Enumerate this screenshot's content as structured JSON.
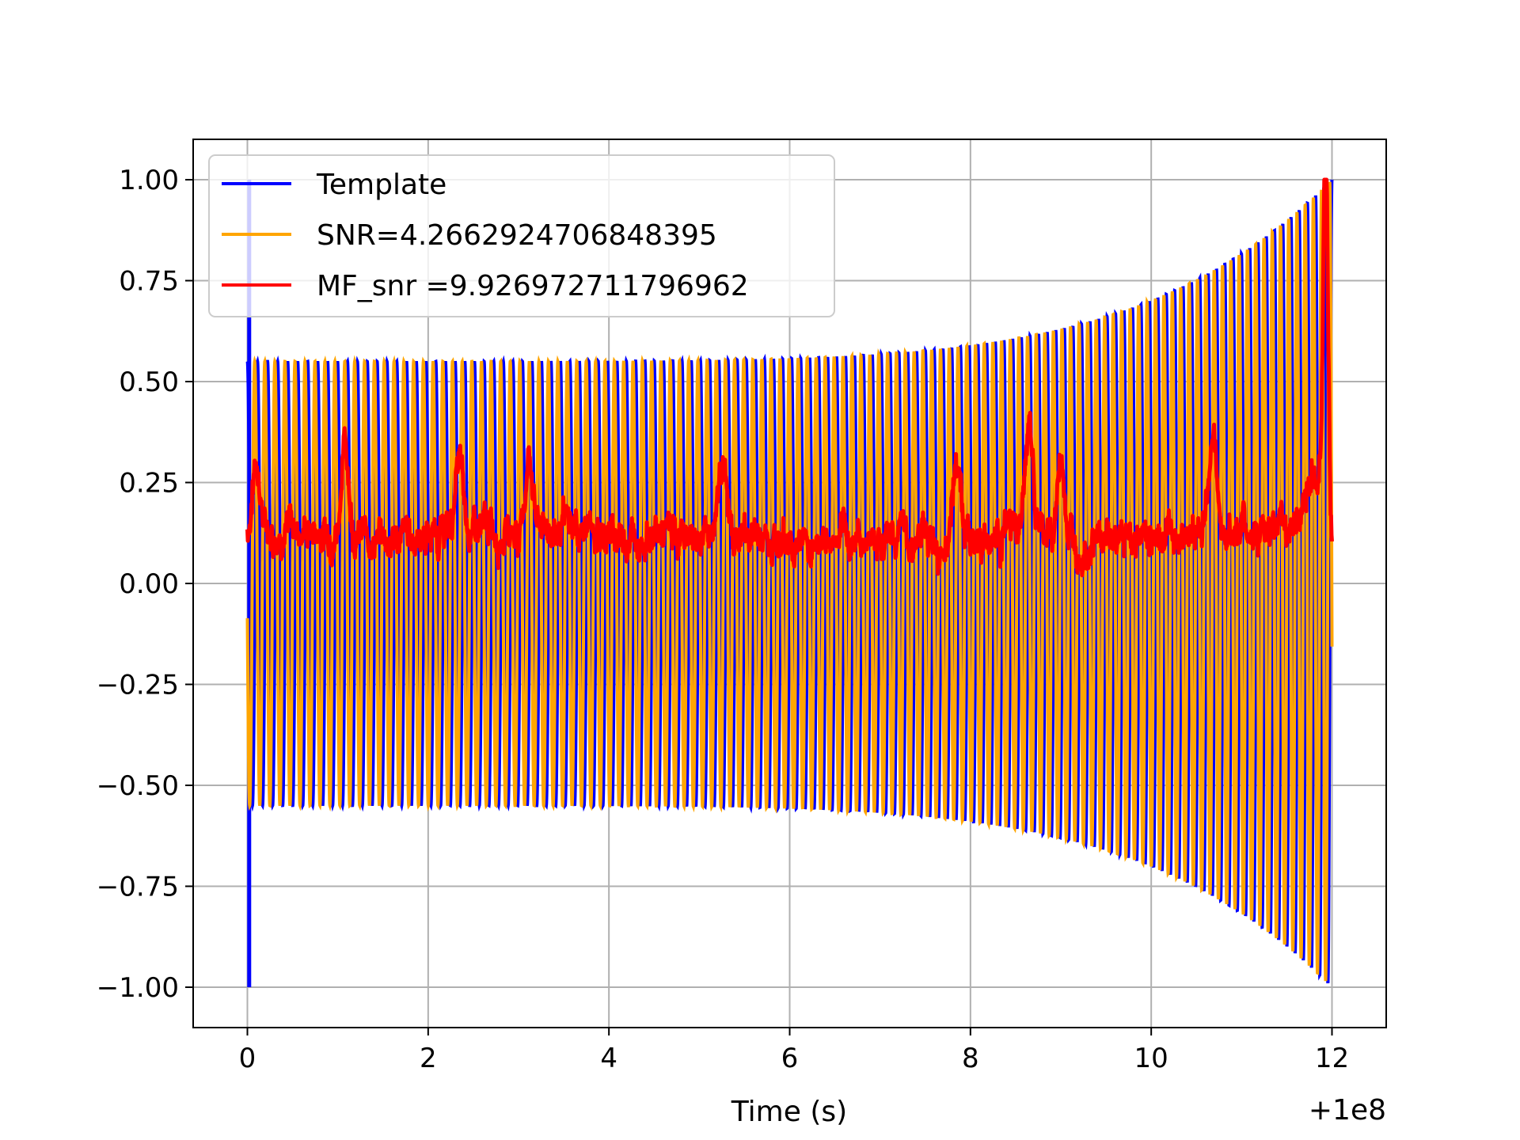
{
  "chart_data": {
    "type": "line",
    "title": "",
    "xlabel": "Time (s)",
    "ylabel": "",
    "x_offset_label": "+1e8",
    "xlim": [
      -0.6,
      12.6
    ],
    "ylim": [
      -1.1,
      1.1
    ],
    "x_ticks": [
      0,
      2,
      4,
      6,
      8,
      10,
      12
    ],
    "x_tick_labels": [
      "0",
      "2",
      "4",
      "6",
      "8",
      "10",
      "12"
    ],
    "y_ticks": [
      1.0,
      0.75,
      0.5,
      0.25,
      0.0,
      -0.25,
      -0.5,
      -0.75,
      -1.0
    ],
    "y_tick_labels": [
      "1.00",
      "0.75",
      "0.50",
      "0.25",
      "0.00",
      "−0.25",
      "−0.50",
      "−0.75",
      "−1.00"
    ],
    "grid": true,
    "legend_position": "top-left",
    "series": [
      {
        "name": "Template",
        "color": "#0000ff",
        "kind": "chirp",
        "t_start": 0.0,
        "t_end": 12.0,
        "amp_start": 0.55,
        "amp_end": 1.0,
        "cycles": 120
      },
      {
        "name": "SNR=4.2662924706848395",
        "color": "#ffa500",
        "kind": "chirp",
        "t_start": 0.0,
        "t_end": 12.0,
        "amp_start": 0.55,
        "amp_end": 1.0,
        "cycles": 120
      },
      {
        "name": "MF_snr =9.926972711796962",
        "color": "#ff0000",
        "kind": "noise",
        "x": [
          0.0,
          0.5,
          1.0,
          1.5,
          2.0,
          2.5,
          3.0,
          3.5,
          4.0,
          4.5,
          5.0,
          5.5,
          6.0,
          6.5,
          7.0,
          7.5,
          8.0,
          8.5,
          9.0,
          9.5,
          10.0,
          10.5,
          11.0,
          11.5,
          11.9,
          12.0
        ],
        "y": [
          0.12,
          0.14,
          0.12,
          0.11,
          0.12,
          0.13,
          0.13,
          0.14,
          0.12,
          0.12,
          0.12,
          0.12,
          0.11,
          0.1,
          0.12,
          0.11,
          0.11,
          0.13,
          0.11,
          0.11,
          0.12,
          0.13,
          0.13,
          0.12,
          0.3,
          0.13
        ],
        "peaks": [
          {
            "x": 0.1,
            "y": 0.3
          },
          {
            "x": 1.08,
            "y": 0.35
          },
          {
            "x": 2.34,
            "y": 0.29
          },
          {
            "x": 3.12,
            "y": 0.3
          },
          {
            "x": 5.25,
            "y": 0.32
          },
          {
            "x": 7.85,
            "y": 0.31
          },
          {
            "x": 8.65,
            "y": 0.38
          },
          {
            "x": 9.0,
            "y": 0.3
          },
          {
            "x": 10.68,
            "y": 0.37
          },
          {
            "x": 11.93,
            "y": 1.0
          }
        ]
      }
    ]
  }
}
